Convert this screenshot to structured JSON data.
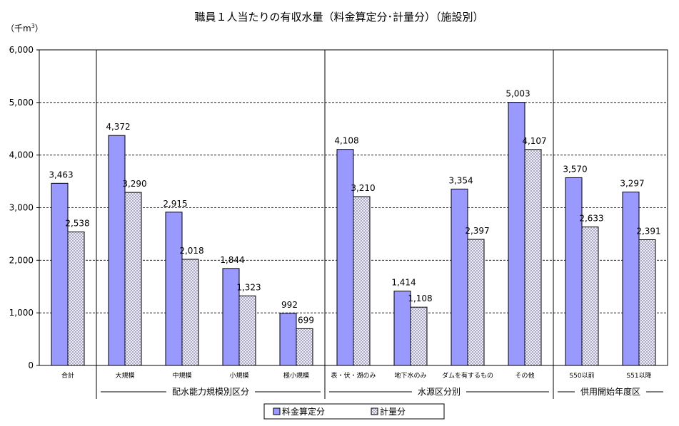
{
  "chart_data": {
    "type": "bar",
    "title": "職員１人当たりの有収水量（料金算定分･計量分）（施設別）",
    "unit_label_prefix": "（千m",
    "unit_label_sup": "3",
    "unit_label_suffix": "）",
    "ylim": [
      0,
      6000
    ],
    "yticks": [
      "0",
      "1,000",
      "2,000",
      "3,000",
      "4,000",
      "5,000",
      "6,000"
    ],
    "grid": true,
    "legend_position": "bottom-center",
    "categories": [
      "合計",
      "大規模",
      "中規模",
      "小規模",
      "極小規模",
      "表・伏・湖のみ",
      "地下水のみ",
      "ダムを有するもの",
      "その他",
      "S50以前",
      "S51以降"
    ],
    "series": [
      {
        "name": "料金算定分",
        "color": "#9999ff",
        "values": [
          3463,
          4372,
          2915,
          1844,
          992,
          4108,
          1414,
          3354,
          5003,
          3570,
          3297
        ],
        "labels": [
          "3,463",
          "4,372",
          "2,915",
          "1,844",
          "992",
          "4,108",
          "1,414",
          "3,354",
          "5,003",
          "3,570",
          "3,297"
        ]
      },
      {
        "name": "計量分",
        "color": "#c8c8e6",
        "pattern": "crosshatch",
        "values": [
          2538,
          3290,
          2018,
          1323,
          699,
          3210,
          1108,
          2397,
          4107,
          2633,
          2391
        ],
        "labels": [
          "2,538",
          "3,290",
          "2,018",
          "1,323",
          "699",
          "3,210",
          "1,108",
          "2,397",
          "4,107",
          "2,633",
          "2,391"
        ]
      }
    ],
    "groups": [
      {
        "label": "配水能力規模別区分",
        "from": 1,
        "to": 4
      },
      {
        "label": "水源区分別",
        "from": 5,
        "to": 8
      },
      {
        "label": "供用開始年度区",
        "from": 9,
        "to": 10
      }
    ]
  }
}
